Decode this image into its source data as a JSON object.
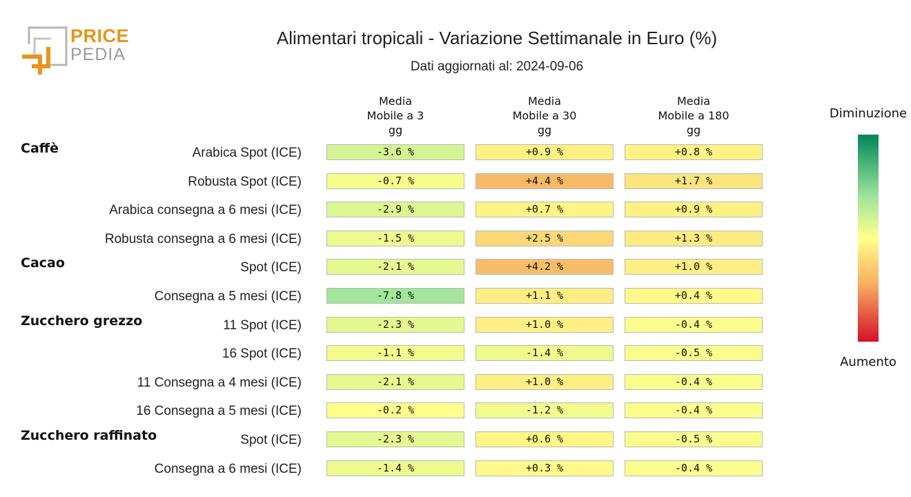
{
  "logo": {
    "word1": "PRICE",
    "word2": "PEDIA"
  },
  "chart_data": {
    "type": "table",
    "title": "Alimentari tropicali - Variazione Settimanale in Euro (%)",
    "subtitle": "Dati aggiornati al: 2024-09-06",
    "columns": [
      "Media\nMobile a 3\ngg",
      "Media\nMobile a 30\ngg",
      "Media\nMobile a 180\ngg"
    ],
    "groups": [
      "Caffè",
      "Cacao",
      "Zucchero grezzo",
      "Zucchero raffinato"
    ],
    "rows": [
      {
        "group": "Caffè",
        "label": "Arabica Spot (ICE)",
        "values": [
          -3.6,
          0.9,
          0.8
        ],
        "display": [
          "-3.6 %",
          "+0.9 %",
          "+0.8 %"
        ]
      },
      {
        "group": "Caffè",
        "label": "Robusta Spot (ICE)",
        "values": [
          -0.7,
          4.4,
          1.7
        ],
        "display": [
          "-0.7 %",
          "+4.4 %",
          "+1.7 %"
        ]
      },
      {
        "group": "Caffè",
        "label": "Arabica consegna a 6 mesi (ICE)",
        "values": [
          -2.9,
          0.7,
          0.9
        ],
        "display": [
          "-2.9 %",
          "+0.7 %",
          "+0.9 %"
        ]
      },
      {
        "group": "Caffè",
        "label": "Robusta consegna a 6 mesi (ICE)",
        "values": [
          -1.5,
          2.5,
          1.3
        ],
        "display": [
          "-1.5 %",
          "+2.5 %",
          "+1.3 %"
        ]
      },
      {
        "group": "Cacao",
        "label": "Spot (ICE)",
        "values": [
          -2.1,
          4.2,
          1.0
        ],
        "display": [
          "-2.1 %",
          "+4.2 %",
          "+1.0 %"
        ]
      },
      {
        "group": "Cacao",
        "label": "Consegna a 5 mesi (ICE)",
        "values": [
          -7.8,
          1.1,
          0.4
        ],
        "display": [
          "-7.8 %",
          "+1.1 %",
          "+0.4 %"
        ]
      },
      {
        "group": "Zucchero grezzo",
        "label": "11 Spot (ICE)",
        "values": [
          -2.3,
          1.0,
          -0.4
        ],
        "display": [
          "-2.3 %",
          "+1.0 %",
          "-0.4 %"
        ]
      },
      {
        "group": "Zucchero grezzo",
        "label": "16 Spot (ICE)",
        "values": [
          -1.1,
          -1.4,
          -0.5
        ],
        "display": [
          "-1.1 %",
          "-1.4 %",
          "-0.5 %"
        ]
      },
      {
        "group": "Zucchero grezzo",
        "label": "11 Consegna a 4 mesi (ICE)",
        "values": [
          -2.1,
          1.0,
          -0.4
        ],
        "display": [
          "-2.1 %",
          "+1.0 %",
          "-0.4 %"
        ]
      },
      {
        "group": "Zucchero grezzo",
        "label": "16 Consegna a 5 mesi (ICE)",
        "values": [
          -0.2,
          -1.2,
          -0.4
        ],
        "display": [
          "-0.2 %",
          "-1.2 %",
          "-0.4 %"
        ]
      },
      {
        "group": "Zucchero raffinato",
        "label": "Spot (ICE)",
        "values": [
          -2.3,
          0.6,
          -0.5
        ],
        "display": [
          "-2.3 %",
          "+0.6 %",
          "-0.5 %"
        ]
      },
      {
        "group": "Zucchero raffinato",
        "label": "Consegna a 6 mesi (ICE)",
        "values": [
          -1.4,
          0.3,
          -0.4
        ],
        "display": [
          "-1.4 %",
          "+0.3 %",
          "-0.4 %"
        ]
      }
    ],
    "legend": {
      "top": "Diminuzione",
      "bottom": "Aumento"
    },
    "colors": {
      "strong_decrease": "#00875a",
      "decrease": "#9fe59a",
      "neutral": "#ffff8c",
      "increase": "#f7b062",
      "strong_increase": "#d6102a"
    }
  }
}
